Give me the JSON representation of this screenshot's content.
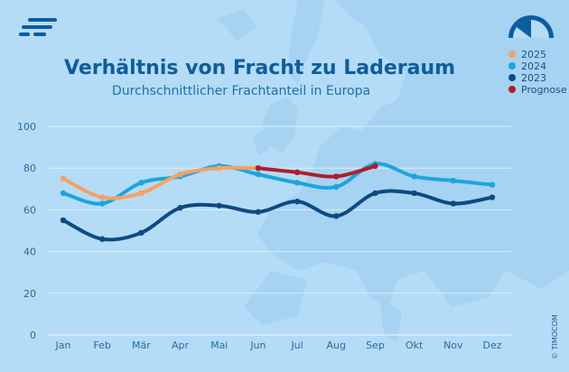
{
  "brand": {
    "logo_icon": "timocom-logo-icon",
    "gauge_icon": "gauge-icon",
    "copyright": "© TIMOCOM"
  },
  "colors": {
    "background": "#b4dcf7",
    "title": "#0e5d9c",
    "s2025": "#f4a263",
    "s2024": "#1ca5de",
    "s2023": "#0d4a80",
    "forecast": "#b11d2a"
  },
  "chart_data": {
    "type": "line",
    "title": "Verhältnis von Fracht zu Laderaum",
    "subtitle": "Durchschnittlicher Frachtanteil in Europa",
    "xlabel": "",
    "ylabel": "",
    "categories": [
      "Jan",
      "Feb",
      "Mär",
      "Apr",
      "Mai",
      "Jun",
      "Jul",
      "Aug",
      "Sep",
      "Okt",
      "Nov",
      "Dez"
    ],
    "ylim": [
      0,
      100
    ],
    "yticks": [
      0,
      20,
      40,
      60,
      80,
      100
    ],
    "grid": true,
    "legend_position": "top-right",
    "series": [
      {
        "name": "2025",
        "color": "#f4a263",
        "values": [
          75,
          66,
          68,
          77,
          80,
          80,
          null,
          null,
          null,
          null,
          null,
          null
        ]
      },
      {
        "name": "2024",
        "color": "#1ca5de",
        "values": [
          68,
          63,
          73,
          76,
          81,
          77,
          73,
          71,
          82,
          76,
          74,
          72
        ]
      },
      {
        "name": "2023",
        "color": "#0d4a80",
        "values": [
          55,
          46,
          49,
          61,
          62,
          59,
          64,
          57,
          68,
          68,
          63,
          66
        ]
      },
      {
        "name": "Prognose",
        "color": "#b11d2a",
        "values": [
          null,
          null,
          null,
          null,
          null,
          80,
          78,
          76,
          81,
          null,
          null,
          null
        ]
      }
    ]
  }
}
